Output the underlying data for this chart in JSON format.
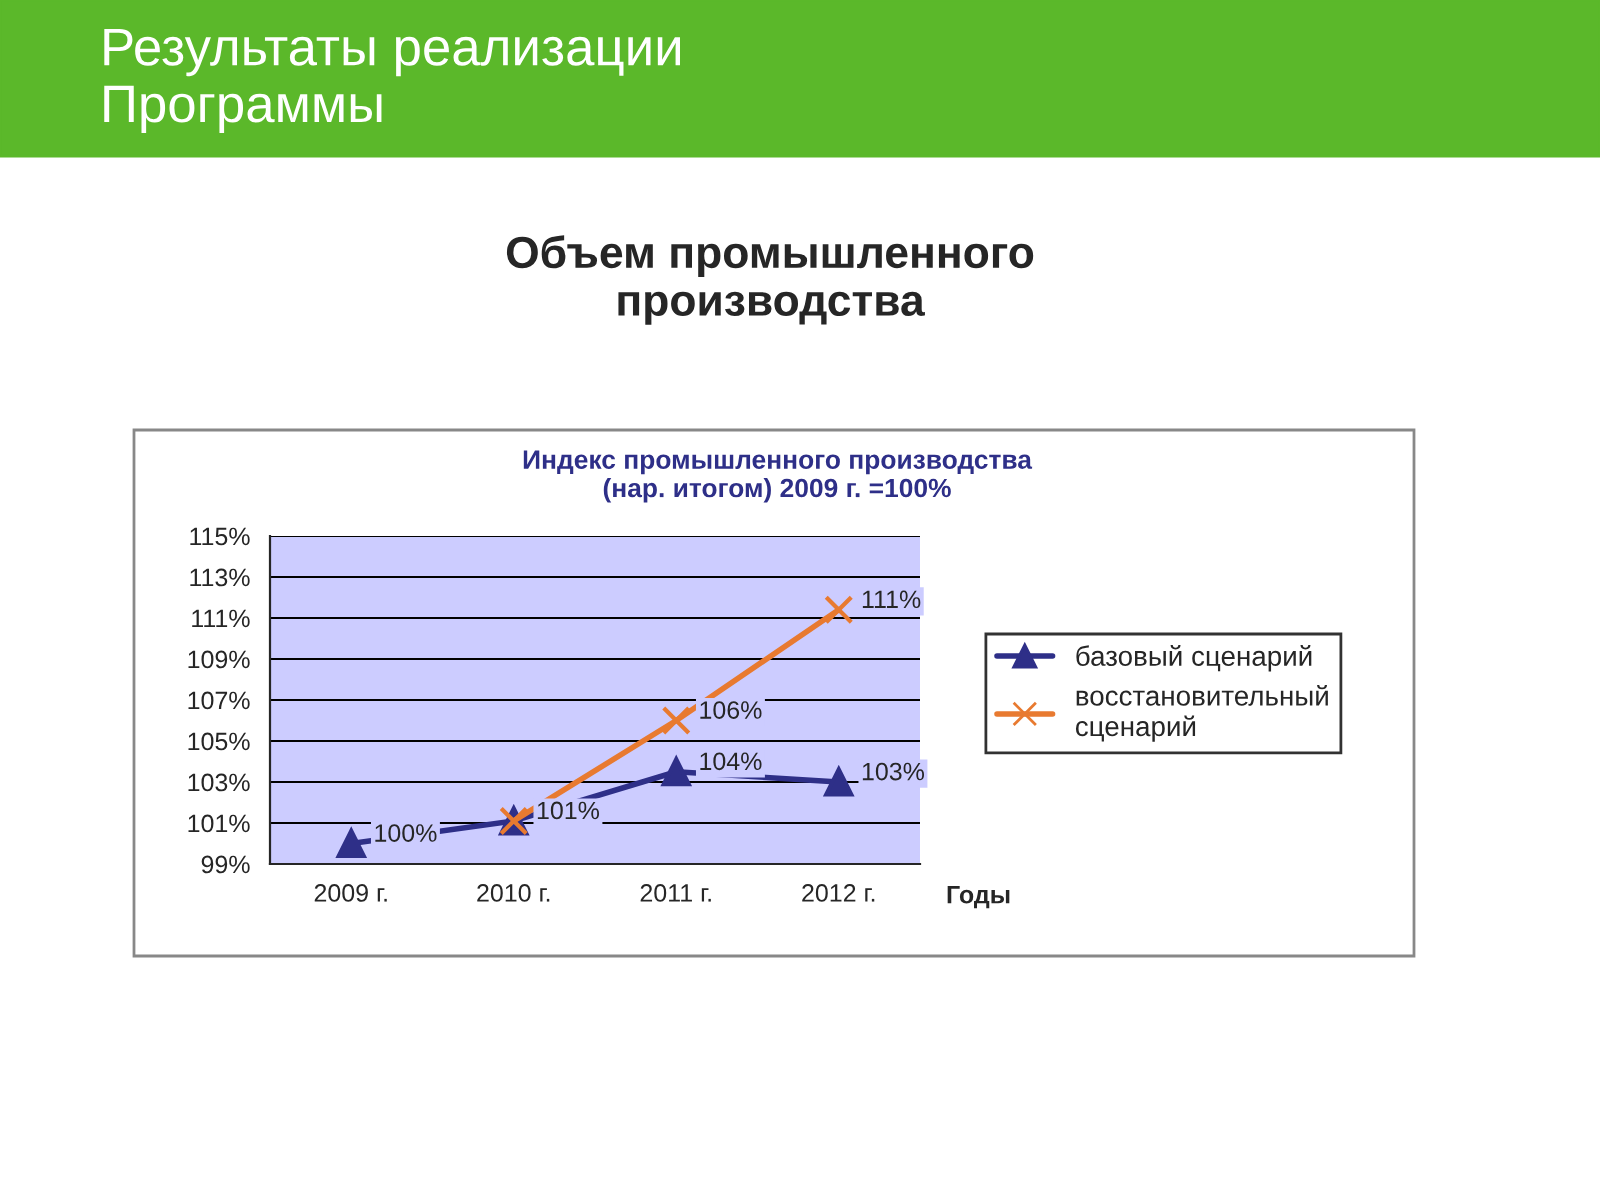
{
  "chart_data": {
    "type": "line",
    "title": "Индекс промышленного производства\n(нар. итогом) 2009 г. =100%",
    "annotations": [
      "Результаты реализации\nПрограммы",
      "Объем промышленного\nпроизводства"
    ],
    "xlabel": "Годы",
    "categories": [
      "2009 г.",
      "2010 г.",
      "2011 г.",
      "2012 г."
    ],
    "series": [
      {
        "name": "базовый сценарий",
        "color": "#2e2f88",
        "marker": "triangle",
        "values": [
          100.0,
          101.1,
          103.5,
          103.0
        ],
        "value_labels": [
          "100%",
          "101%",
          "104%",
          "103%"
        ]
      },
      {
        "name": "восстановительный сценарий",
        "color": "#e87a30",
        "marker": "cross",
        "values": [
          null,
          101.1,
          106.0,
          111.4
        ],
        "value_labels": [
          null,
          null,
          "106%",
          "111%"
        ]
      }
    ],
    "ylim": [
      99,
      115
    ],
    "yticks": [
      {
        "value": 99,
        "label": "99%"
      },
      {
        "value": 101,
        "label": "101%"
      },
      {
        "value": 103,
        "label": "103%"
      },
      {
        "value": 105,
        "label": "105%"
      },
      {
        "value": 107,
        "label": "107%"
      },
      {
        "value": 109,
        "label": "109%"
      },
      {
        "value": 111,
        "label": "111%"
      },
      {
        "value": 113,
        "label": "113%"
      },
      {
        "value": 115,
        "label": "115%"
      }
    ],
    "grid": "y",
    "legend": "right",
    "line_style": "solid"
  }
}
